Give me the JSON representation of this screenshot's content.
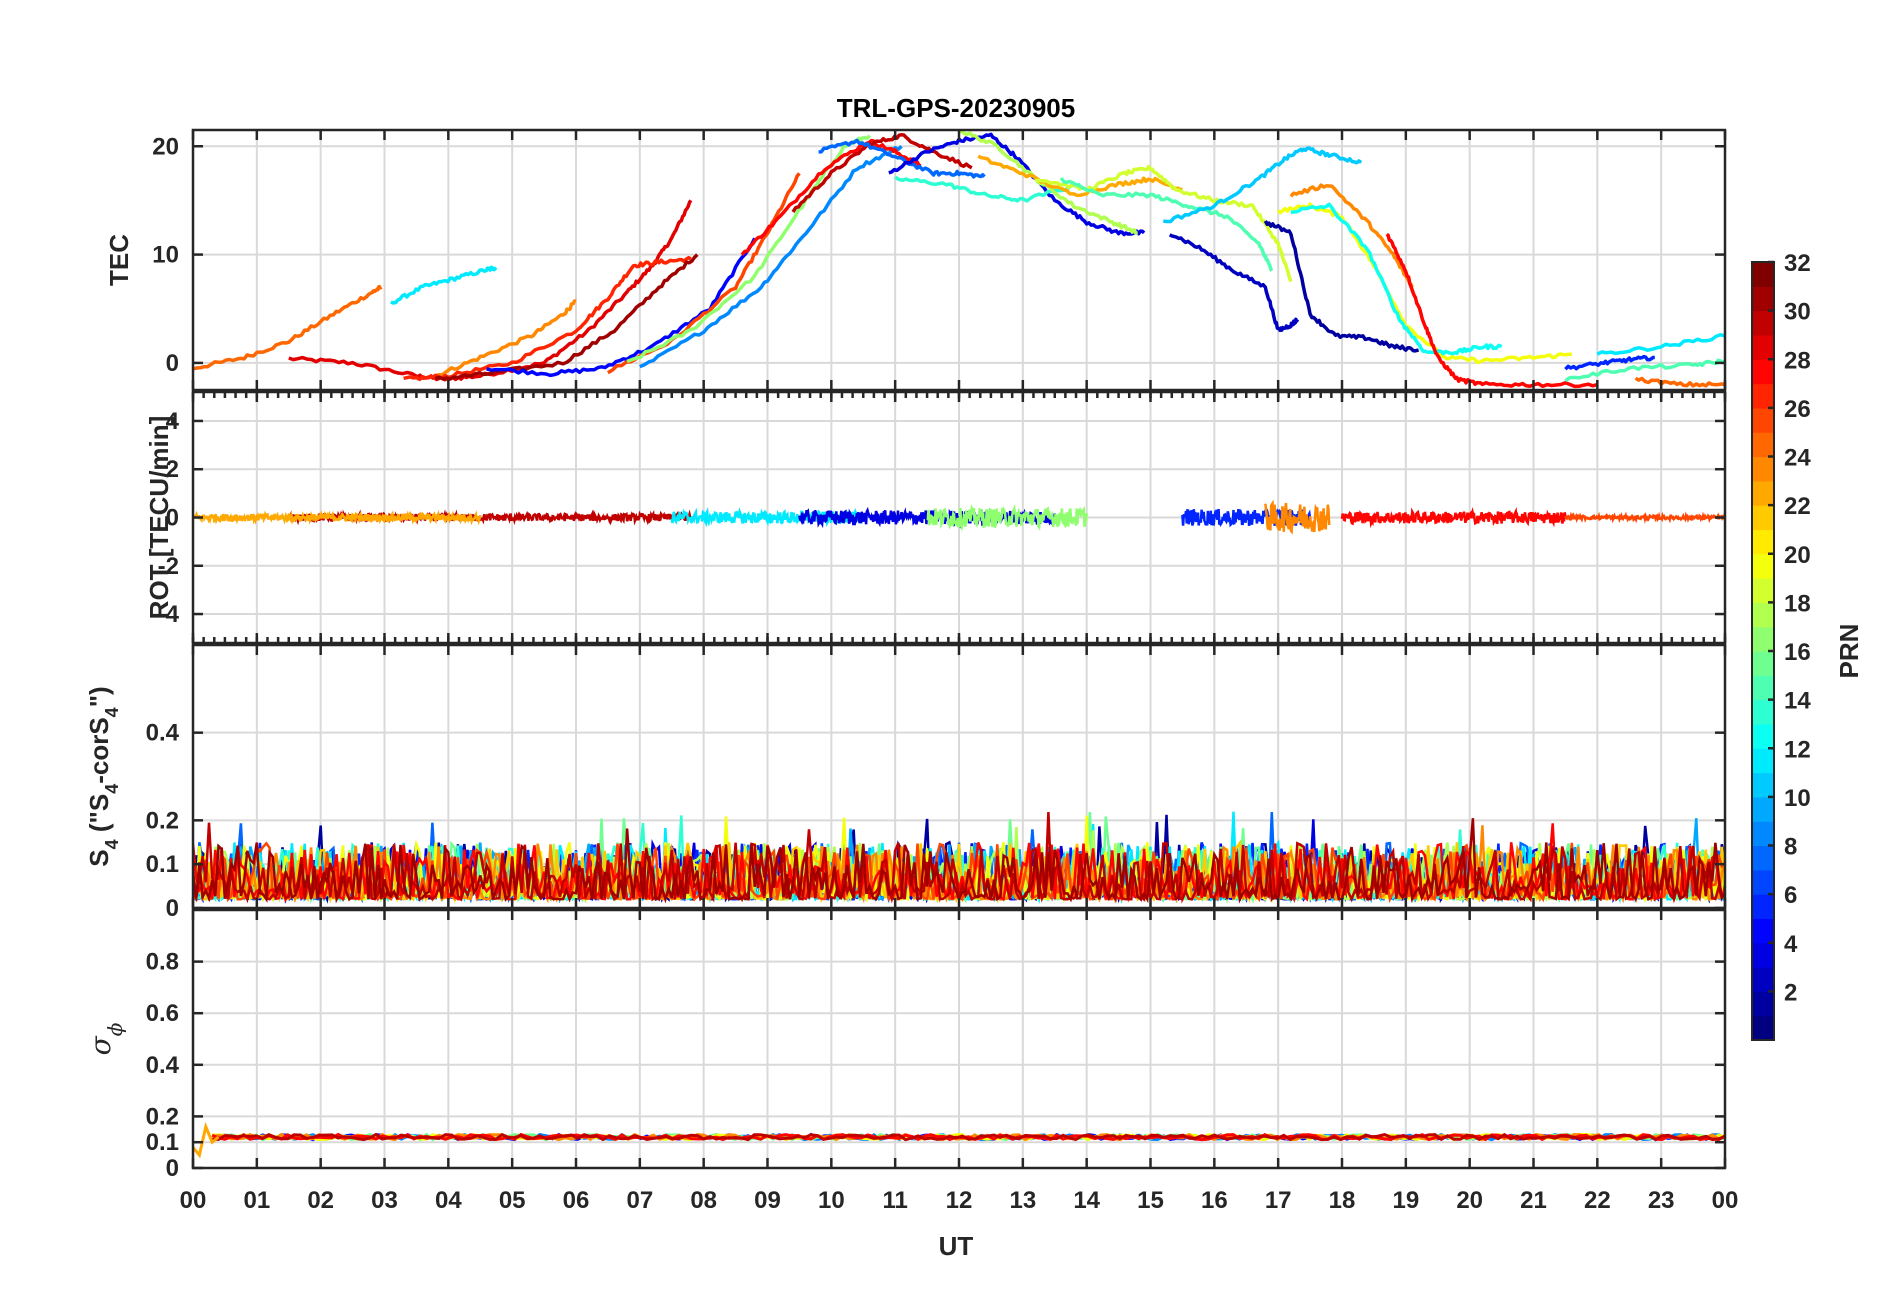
{
  "chart_data": {
    "type": "line",
    "title": "TRL-GPS-20230905",
    "xlabel": "UT",
    "x_tick_labels": [
      "00",
      "01",
      "02",
      "03",
      "04",
      "05",
      "06",
      "07",
      "08",
      "09",
      "10",
      "11",
      "12",
      "13",
      "14",
      "15",
      "16",
      "17",
      "18",
      "19",
      "20",
      "21",
      "22",
      "23",
      "00"
    ],
    "xlim": [
      0,
      24
    ],
    "grid": true,
    "panels": [
      {
        "name": "TEC",
        "ylabel": "TEC",
        "ylim": [
          -2.5,
          21.5
        ],
        "yticks": [
          0,
          10,
          20
        ],
        "series": [
          {
            "prn": 29,
            "x": [
              1.5,
              2.5,
              3.5,
              3.9,
              4.5,
              5.5,
              6.2,
              6.8,
              7.2,
              7.5,
              7.8
            ],
            "y": [
              0.4,
              0,
              -1.2,
              -1.5,
              -1.2,
              0,
              3,
              6.5,
              9,
              11.5,
              15
            ]
          },
          {
            "prn": 25,
            "x": [
              0,
              0.8,
              1.5,
              2.2,
              2.8,
              2.95
            ],
            "y": [
              -0.5,
              0.5,
              2,
              4.5,
              6.5,
              7
            ]
          },
          {
            "prn": 12,
            "x": [
              3.1,
              3.6,
              4.1,
              4.6,
              4.75
            ],
            "y": [
              5.5,
              7,
              7.8,
              8.6,
              8.8
            ]
          },
          {
            "prn": 24,
            "x": [
              3.8,
              4.5,
              5.3,
              5.8,
              6
            ],
            "y": [
              -1.2,
              0.5,
              2.5,
              4.5,
              5.7
            ]
          },
          {
            "prn": 27,
            "x": [
              3.3,
              4,
              5,
              6,
              6.5,
              6.9,
              7.3,
              7.8
            ],
            "y": [
              -1.5,
              -1.2,
              0,
              3,
              6,
              9,
              9.3,
              9.6
            ]
          },
          {
            "prn": 31,
            "x": [
              3.8,
              4.6,
              5.8,
              6.6,
              7.3,
              7.9
            ],
            "y": [
              -1.5,
              -1,
              0,
              3,
              7,
              10
            ]
          },
          {
            "prn": 5,
            "x": [
              4.6,
              5.6,
              6.4,
              7.2,
              8.1,
              8.8
            ],
            "y": [
              -0.5,
              -1,
              -0.5,
              1.5,
              5,
              11.5
            ]
          },
          {
            "prn": 26,
            "x": [
              6.5,
              7.5,
              8.5,
              9,
              9.5
            ],
            "y": [
              -0.8,
              2,
              7,
              12,
              17.5
            ]
          },
          {
            "prn": 17,
            "x": [
              6.8,
              7.8,
              8.8,
              9.6,
              10.2,
              10.6
            ],
            "y": [
              0,
              3,
              8,
              15,
              20,
              21
            ]
          },
          {
            "prn": 9,
            "x": [
              7,
              8,
              8.9,
              9.6,
              10.4,
              11.1
            ],
            "y": [
              -0.5,
              3,
              7,
              12,
              18,
              20
            ]
          },
          {
            "prn": 28,
            "x": [
              8.6,
              9.2,
              9.9,
              10.6,
              11,
              11.4
            ],
            "y": [
              10,
              13.5,
              18,
              20.5,
              19.5,
              18.2
            ]
          },
          {
            "prn": 30,
            "x": [
              9.4,
              10,
              10.6,
              11.1,
              11.6,
              12.2
            ],
            "y": [
              14,
              17.5,
              20.2,
              21,
              19.5,
              18
            ]
          },
          {
            "prn": 8,
            "x": [
              9.8,
              10.4,
              11,
              11.6,
              12,
              12.4
            ],
            "y": [
              19.5,
              20.5,
              19,
              17.5,
              17.5,
              17.2
            ]
          },
          {
            "prn": 4,
            "x": [
              10.9,
              11.5,
              12,
              12.5,
              12.9,
              13.5,
              14,
              14.5,
              14.9
            ],
            "y": [
              17.5,
              19.5,
              20.5,
              21,
              19,
              15,
              13,
              12,
              12
            ]
          },
          {
            "prn": 14,
            "x": [
              11,
              11.8,
              12.4,
              13,
              13.9
            ],
            "y": [
              17,
              16.5,
              15.5,
              15,
              16.5
            ]
          },
          {
            "prn": 18,
            "x": [
              12,
              12.6,
              13.2,
              13.8,
              14.4,
              14.8
            ],
            "y": [
              21.5,
              20,
              17,
              14.5,
              13,
              12
            ]
          },
          {
            "prn": 23,
            "x": [
              12.3,
              13,
              13.8,
              14.5,
              15,
              15.5
            ],
            "y": [
              19,
              17.5,
              15.5,
              16.5,
              17,
              16
            ]
          },
          {
            "prn": 19,
            "x": [
              13.2,
              14,
              14.6,
              15,
              15.4,
              16,
              16.6,
              17,
              17.2
            ],
            "y": [
              17,
              16,
              17.5,
              18,
              16,
              15,
              14.5,
              11,
              7.5
            ]
          },
          {
            "prn": 15,
            "x": [
              13.6,
              14.2,
              15,
              15.6,
              16.2,
              16.7,
              16.9
            ],
            "y": [
              17,
              15.5,
              15.5,
              14.5,
              13.5,
              11,
              8.5
            ]
          },
          {
            "prn": 3,
            "x": [
              15.3,
              15.8,
              16.3,
              16.8,
              17,
              17.2,
              17.3
            ],
            "y": [
              12,
              10.5,
              8.5,
              7,
              3,
              3.5,
              4
            ]
          },
          {
            "prn": 11,
            "x": [
              15.2,
              16,
              16.7,
              17.1,
              17.4,
              17.8,
              18.3
            ],
            "y": [
              13,
              14.5,
              17,
              18.8,
              19.8,
              19.2,
              18.5
            ]
          },
          {
            "prn": 2,
            "x": [
              16.8,
              17.2,
              17.5,
              17.9,
              18.4,
              18.8,
              19.2
            ],
            "y": [
              13,
              12,
              4.5,
              2.5,
              2.3,
              1.5,
              1.2
            ]
          },
          {
            "prn": 20,
            "x": [
              17,
              17.5,
              18,
              18.5,
              19,
              19.6,
              20.2,
              21,
              21.6
            ],
            "y": [
              14,
              14.5,
              13.5,
              9,
              3.5,
              0.5,
              0.2,
              0.5,
              0.8
            ]
          },
          {
            "prn": 13,
            "x": [
              17.2,
              17.8,
              18.4,
              18.9,
              19.3,
              19.8,
              20.2,
              20.5
            ],
            "y": [
              14,
              14.5,
              10.5,
              4,
              1,
              1,
              1.5,
              1.5
            ]
          },
          {
            "prn": 24,
            "x": [
              17.2,
              17.8,
              18.4,
              18.8,
              19.1
            ],
            "y": [
              15.5,
              16.5,
              13,
              10,
              7
            ]
          },
          {
            "prn": 28,
            "x": [
              18.7,
              19,
              19.3,
              19.5,
              19.8,
              20.2,
              21,
              22
            ],
            "y": [
              12,
              8.5,
              3.5,
              0.5,
              -1.5,
              -2,
              -2,
              -2
            ]
          },
          {
            "prn": 6,
            "x": [
              21.5,
              22.1,
              22.5,
              22.9
            ],
            "y": [
              -0.5,
              0,
              0.3,
              0.5
            ]
          },
          {
            "prn": 12,
            "x": [
              22,
              23,
              24
            ],
            "y": [
              0.8,
              1.5,
              2.5
            ]
          },
          {
            "prn": 15,
            "x": [
              21.5,
              22.5,
              23.5,
              24
            ],
            "y": [
              -1.5,
              -0.5,
              -0.2,
              0.2
            ]
          },
          {
            "prn": 25,
            "x": [
              22.6,
              23.3,
              24
            ],
            "y": [
              -1.5,
              -2,
              -2
            ]
          }
        ]
      },
      {
        "name": "ROT",
        "ylabel": "ROT [TECU/min]",
        "ylim": [
          -5.2,
          5.2
        ],
        "yticks": [
          -4,
          -2,
          0,
          2,
          4
        ],
        "series": [
          {
            "prn": 30,
            "x_range": [
              1.5,
              7.8
            ],
            "amplitude": 0.15
          },
          {
            "prn": 23,
            "x_range": [
              0,
              4.5
            ],
            "amplitude": 0.15
          },
          {
            "prn": 12,
            "x_range": [
              7.5,
              10.5
            ],
            "amplitude": 0.25
          },
          {
            "prn": 4,
            "x_range": [
              9.5,
              13.5
            ],
            "amplitude": 0.3
          },
          {
            "prn": 17,
            "x_range": [
              11.5,
              14
            ],
            "amplitude": 0.4
          },
          {
            "prn": 6,
            "x_range": [
              15.5,
              17.5
            ],
            "amplitude": 0.35
          },
          {
            "prn": 24,
            "x_range": [
              16.8,
              17.8
            ],
            "amplitude": 0.6
          },
          {
            "prn": 28,
            "x_range": [
              18,
              21.5
            ],
            "amplitude": 0.25
          },
          {
            "prn": 26,
            "x_range": [
              21.5,
              24
            ],
            "amplitude": 0.08
          }
        ]
      },
      {
        "name": "S4",
        "ylabel": "S4 (\"S4-corS4\")",
        "ylim": [
          0,
          0.6
        ],
        "yticks": [
          0,
          0.1,
          0.2,
          0.4
        ],
        "typical_range": [
          0,
          0.15
        ],
        "max_value": 0.22
      },
      {
        "name": "sigma_phi",
        "ylabel": "σϕ",
        "ylim": [
          0,
          1.0
        ],
        "yticks": [
          0,
          0.1,
          0.2,
          0.4,
          0.6,
          0.8
        ],
        "typical_value": 0.12
      }
    ],
    "colorbar": {
      "label": "PRN",
      "range": [
        1,
        32
      ],
      "ticks": [
        2,
        4,
        6,
        8,
        10,
        12,
        14,
        16,
        18,
        20,
        22,
        24,
        26,
        28,
        30,
        32
      ],
      "colormap": "jet"
    }
  }
}
